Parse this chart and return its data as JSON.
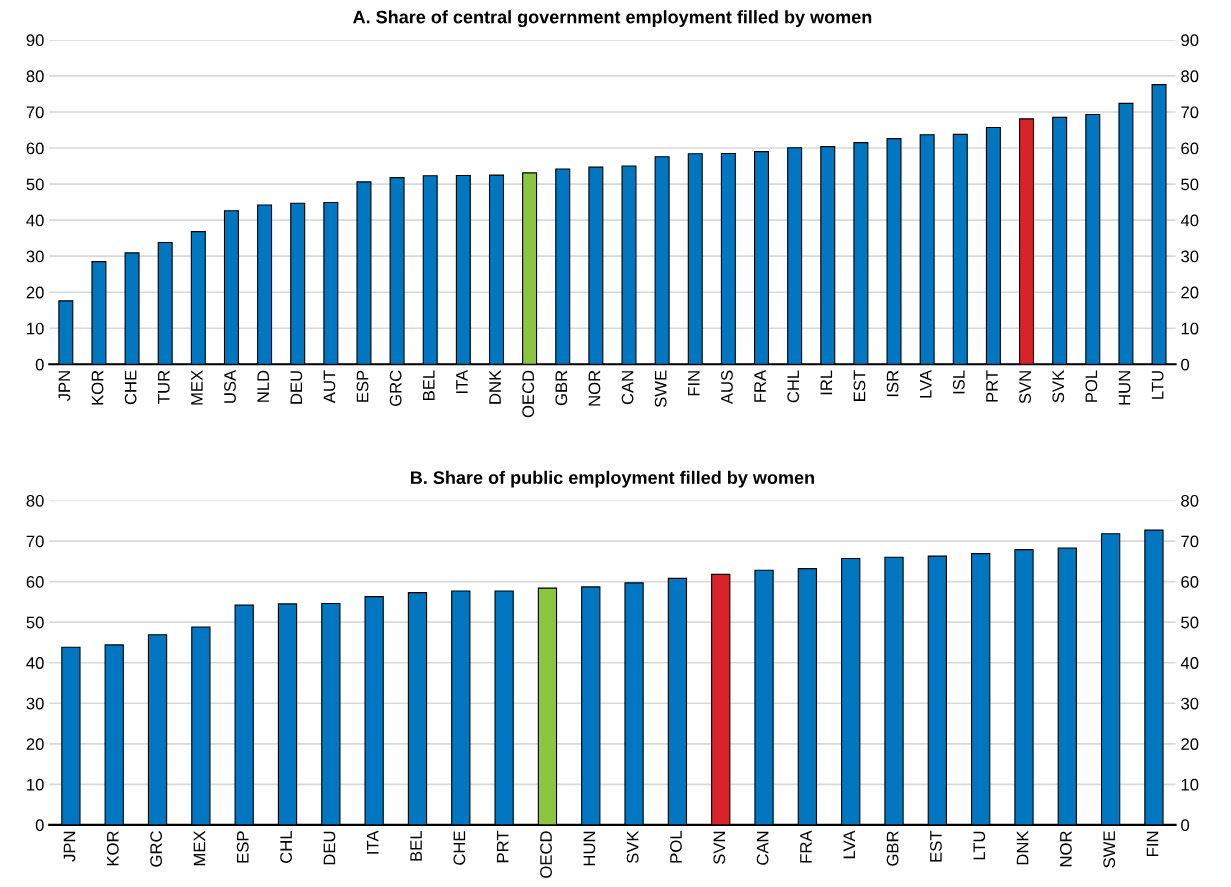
{
  "chart_data": [
    {
      "type": "bar",
      "title": "A. Share of central government employment filled by women",
      "categories": [
        "JPN",
        "KOR",
        "CHE",
        "TUR",
        "MEX",
        "USA",
        "NLD",
        "DEU",
        "AUT",
        "ESP",
        "GRC",
        "BEL",
        "ITA",
        "DNK",
        "OECD",
        "GBR",
        "NOR",
        "CAN",
        "SWE",
        "FIN",
        "AUS",
        "FRA",
        "CHL",
        "IRL",
        "EST",
        "ISR",
        "LVA",
        "ISL",
        "PRT",
        "SVN",
        "SVK",
        "POL",
        "HUN",
        "LTU"
      ],
      "values": [
        17.6,
        28.5,
        30.9,
        33.8,
        36.8,
        42.6,
        44.2,
        44.7,
        44.9,
        50.6,
        51.8,
        52.3,
        52.4,
        52.5,
        53.1,
        54.2,
        54.7,
        55.0,
        57.6,
        58.4,
        58.5,
        59.0,
        60.1,
        60.4,
        61.5,
        62.6,
        63.7,
        63.8,
        65.7,
        68.1,
        68.5,
        69.3,
        72.4,
        77.6
      ],
      "colors": [
        "#0077c0",
        "#0077c0",
        "#0077c0",
        "#0077c0",
        "#0077c0",
        "#0077c0",
        "#0077c0",
        "#0077c0",
        "#0077c0",
        "#0077c0",
        "#0077c0",
        "#0077c0",
        "#0077c0",
        "#0077c0",
        "#8cc63f",
        "#0077c0",
        "#0077c0",
        "#0077c0",
        "#0077c0",
        "#0077c0",
        "#0077c0",
        "#0077c0",
        "#0077c0",
        "#0077c0",
        "#0077c0",
        "#0077c0",
        "#0077c0",
        "#0077c0",
        "#0077c0",
        "#d9232a",
        "#0077c0",
        "#0077c0",
        "#0077c0",
        "#0077c0"
      ],
      "ylim": [
        0,
        90
      ],
      "yticks": [
        0,
        10,
        20,
        30,
        40,
        50,
        60,
        70,
        80,
        90
      ],
      "y2lim": [
        0,
        90
      ],
      "y2ticks": [
        0,
        10,
        20,
        30,
        40,
        50,
        60,
        70,
        80,
        90
      ],
      "grid": "y"
    },
    {
      "type": "bar",
      "title": "B. Share of public employment filled by women",
      "categories": [
        "JPN",
        "KOR",
        "GRC",
        "MEX",
        "ESP",
        "CHL",
        "DEU",
        "ITA",
        "BEL",
        "CHE",
        "PRT",
        "OECD",
        "HUN",
        "SVK",
        "POL",
        "SVN",
        "CAN",
        "FRA",
        "LVA",
        "GBR",
        "EST",
        "LTU",
        "DNK",
        "NOR",
        "SWE",
        "FIN"
      ],
      "values": [
        43.8,
        44.4,
        46.9,
        48.8,
        54.2,
        54.5,
        54.6,
        56.3,
        57.3,
        57.7,
        57.7,
        58.4,
        58.7,
        59.7,
        60.8,
        61.8,
        62.8,
        63.2,
        65.7,
        66.0,
        66.3,
        66.9,
        67.9,
        68.3,
        71.8,
        72.7
      ],
      "colors": [
        "#0077c0",
        "#0077c0",
        "#0077c0",
        "#0077c0",
        "#0077c0",
        "#0077c0",
        "#0077c0",
        "#0077c0",
        "#0077c0",
        "#0077c0",
        "#0077c0",
        "#8cc63f",
        "#0077c0",
        "#0077c0",
        "#0077c0",
        "#d9232a",
        "#0077c0",
        "#0077c0",
        "#0077c0",
        "#0077c0",
        "#0077c0",
        "#0077c0",
        "#0077c0",
        "#0077c0",
        "#0077c0",
        "#0077c0"
      ],
      "ylim": [
        0,
        80
      ],
      "yticks": [
        0,
        10,
        20,
        30,
        40,
        50,
        60,
        70,
        80
      ],
      "y2lim": [
        0,
        80
      ],
      "y2ticks": [
        0,
        10,
        20,
        30,
        40,
        50,
        60,
        70,
        80
      ],
      "grid": "y"
    }
  ]
}
